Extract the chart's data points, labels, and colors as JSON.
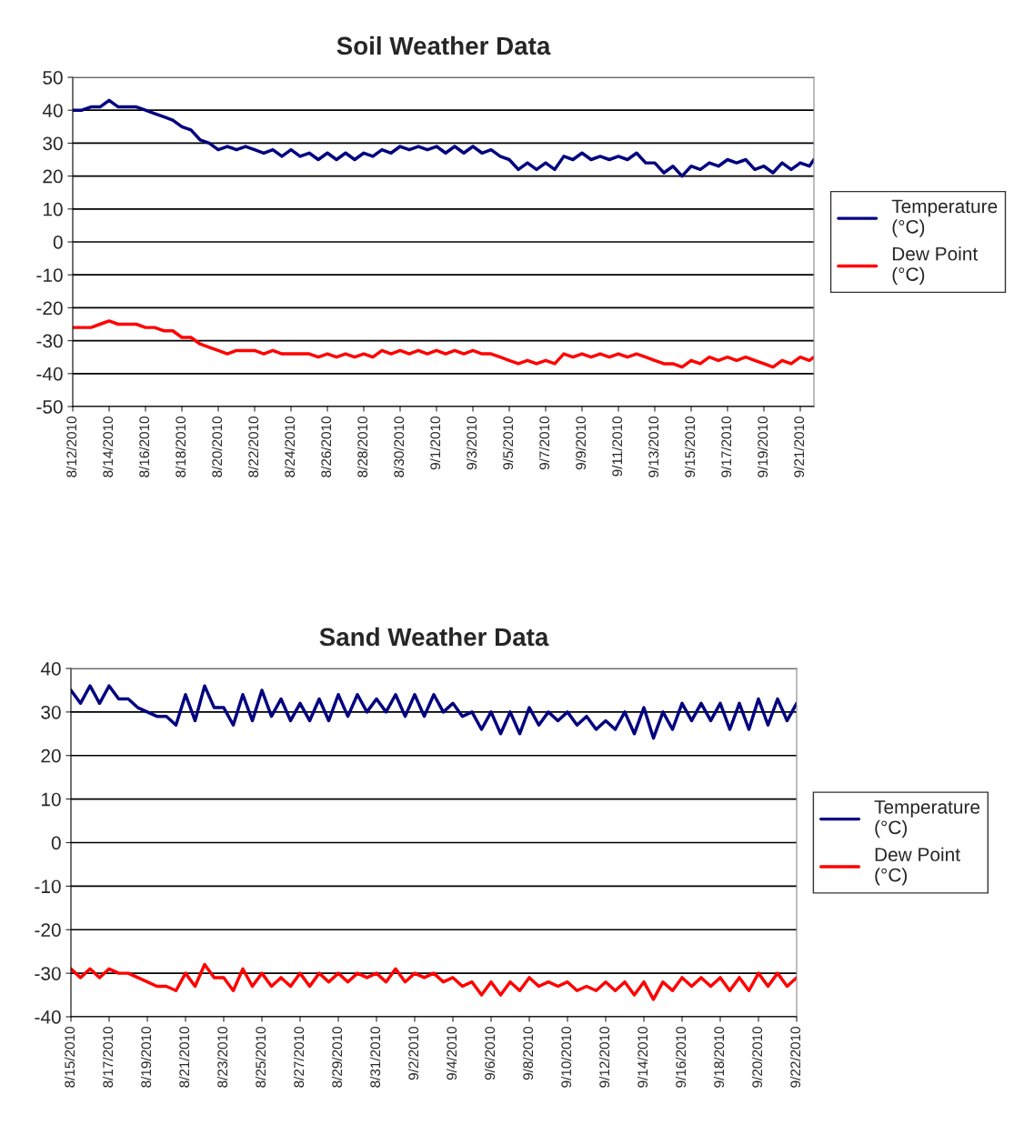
{
  "chart_data": [
    {
      "type": "line",
      "title": "Soil Weather Data",
      "grid": "y",
      "legend": "right",
      "marker": "none",
      "line_style": "solid",
      "x": [
        "2010-08-12",
        "2010-08-12T12:00",
        "2010-08-13",
        "2010-08-13T12:00",
        "2010-08-14",
        "2010-08-14T12:00",
        "2010-08-15",
        "2010-08-15T12:00",
        "2010-08-16",
        "2010-08-16T12:00",
        "2010-08-17",
        "2010-08-17T12:00",
        "2010-08-18",
        "2010-08-18T12:00",
        "2010-08-19",
        "2010-08-19T12:00",
        "2010-08-20",
        "2010-08-20T12:00",
        "2010-08-21",
        "2010-08-21T12:00",
        "2010-08-22",
        "2010-08-22T12:00",
        "2010-08-23",
        "2010-08-23T12:00",
        "2010-08-24",
        "2010-08-24T12:00",
        "2010-08-25",
        "2010-08-25T12:00",
        "2010-08-26",
        "2010-08-26T12:00",
        "2010-08-27",
        "2010-08-27T12:00",
        "2010-08-28",
        "2010-08-28T12:00",
        "2010-08-29",
        "2010-08-29T12:00",
        "2010-08-30",
        "2010-08-30T12:00",
        "2010-08-31",
        "2010-08-31T12:00",
        "2010-09-01",
        "2010-09-01T12:00",
        "2010-09-02",
        "2010-09-02T12:00",
        "2010-09-03",
        "2010-09-03T12:00",
        "2010-09-04",
        "2010-09-04T12:00",
        "2010-09-05",
        "2010-09-05T12:00",
        "2010-09-06",
        "2010-09-06T12:00",
        "2010-09-07",
        "2010-09-07T12:00",
        "2010-09-08",
        "2010-09-08T12:00",
        "2010-09-09",
        "2010-09-09T12:00",
        "2010-09-10",
        "2010-09-10T12:00",
        "2010-09-11",
        "2010-09-11T12:00",
        "2010-09-12",
        "2010-09-12T12:00",
        "2010-09-13",
        "2010-09-13T12:00",
        "2010-09-14",
        "2010-09-14T12:00",
        "2010-09-15",
        "2010-09-15T12:00",
        "2010-09-16",
        "2010-09-16T12:00",
        "2010-09-17",
        "2010-09-17T12:00",
        "2010-09-18",
        "2010-09-18T12:00",
        "2010-09-19",
        "2010-09-19T12:00",
        "2010-09-20",
        "2010-09-20T12:00",
        "2010-09-21",
        "2010-09-21T12:00",
        "2010-09-21T18:00"
      ],
      "series": [
        {
          "name": "Temperature (°C)",
          "color": "#000080",
          "values": [
            40,
            40,
            41,
            41,
            43,
            41,
            41,
            41,
            40,
            39,
            38,
            37,
            35,
            34,
            31,
            30,
            28,
            29,
            28,
            29,
            28,
            27,
            28,
            26,
            28,
            26,
            27,
            25,
            27,
            25,
            27,
            25,
            27,
            26,
            28,
            27,
            29,
            28,
            29,
            28,
            29,
            27,
            29,
            27,
            29,
            27,
            28,
            26,
            25,
            22,
            24,
            22,
            24,
            22,
            26,
            25,
            27,
            25,
            26,
            25,
            26,
            25,
            27,
            24,
            24,
            21,
            23,
            20,
            23,
            22,
            24,
            23,
            25,
            24,
            25,
            22,
            23,
            21,
            24,
            22,
            24,
            23,
            25
          ]
        },
        {
          "name": "Dew Point (°C)",
          "color": "#ff0000",
          "values": [
            -26,
            -26,
            -26,
            -25,
            -24,
            -25,
            -25,
            -25,
            -26,
            -26,
            -27,
            -27,
            -29,
            -29,
            -31,
            -32,
            -33,
            -34,
            -33,
            -33,
            -33,
            -34,
            -33,
            -34,
            -34,
            -34,
            -34,
            -35,
            -34,
            -35,
            -34,
            -35,
            -34,
            -35,
            -33,
            -34,
            -33,
            -34,
            -33,
            -34,
            -33,
            -34,
            -33,
            -34,
            -33,
            -34,
            -34,
            -35,
            -36,
            -37,
            -36,
            -37,
            -36,
            -37,
            -34,
            -35,
            -34,
            -35,
            -34,
            -35,
            -34,
            -35,
            -34,
            -35,
            -36,
            -37,
            -37,
            -38,
            -36,
            -37,
            -35,
            -36,
            -35,
            -36,
            -35,
            -36,
            -37,
            -38,
            -36,
            -37,
            -35,
            -36,
            -35
          ]
        }
      ],
      "xlim": [
        "2010-08-12",
        "2010-09-21T18:00"
      ],
      "xticks": [
        {
          "value": "2010-08-12",
          "label": "8/12/2010"
        },
        {
          "value": "2010-08-14",
          "label": "8/14/2010"
        },
        {
          "value": "2010-08-16",
          "label": "8/16/2010"
        },
        {
          "value": "2010-08-18",
          "label": "8/18/2010"
        },
        {
          "value": "2010-08-20",
          "label": "8/20/2010"
        },
        {
          "value": "2010-08-22",
          "label": "8/22/2010"
        },
        {
          "value": "2010-08-24",
          "label": "8/24/2010"
        },
        {
          "value": "2010-08-26",
          "label": "8/26/2010"
        },
        {
          "value": "2010-08-28",
          "label": "8/28/2010"
        },
        {
          "value": "2010-08-30",
          "label": "8/30/2010"
        },
        {
          "value": "2010-09-01",
          "label": "9/1/2010"
        },
        {
          "value": "2010-09-03",
          "label": "9/3/2010"
        },
        {
          "value": "2010-09-05",
          "label": "9/5/2010"
        },
        {
          "value": "2010-09-07",
          "label": "9/7/2010"
        },
        {
          "value": "2010-09-09",
          "label": "9/9/2010"
        },
        {
          "value": "2010-09-11",
          "label": "9/11/2010"
        },
        {
          "value": "2010-09-13",
          "label": "9/13/2010"
        },
        {
          "value": "2010-09-15",
          "label": "9/15/2010"
        },
        {
          "value": "2010-09-17",
          "label": "9/17/2010"
        },
        {
          "value": "2010-09-19",
          "label": "9/19/2010"
        },
        {
          "value": "2010-09-21",
          "label": "9/21/2010"
        }
      ],
      "ylim": [
        -50,
        50
      ],
      "yticks": [
        -50,
        -40,
        -30,
        -20,
        -10,
        0,
        10,
        20,
        30,
        40,
        50
      ]
    },
    {
      "type": "line",
      "title": "Sand Weather Data",
      "grid": "y",
      "legend": "right",
      "marker": "none",
      "line_style": "solid",
      "x": [
        "2010-08-15",
        "2010-08-15T12:00",
        "2010-08-16",
        "2010-08-16T12:00",
        "2010-08-17",
        "2010-08-17T12:00",
        "2010-08-18",
        "2010-08-18T12:00",
        "2010-08-19",
        "2010-08-19T12:00",
        "2010-08-20",
        "2010-08-20T12:00",
        "2010-08-21",
        "2010-08-21T12:00",
        "2010-08-22",
        "2010-08-22T12:00",
        "2010-08-23",
        "2010-08-23T12:00",
        "2010-08-24",
        "2010-08-24T12:00",
        "2010-08-25",
        "2010-08-25T12:00",
        "2010-08-26",
        "2010-08-26T12:00",
        "2010-08-27",
        "2010-08-27T12:00",
        "2010-08-28",
        "2010-08-28T12:00",
        "2010-08-29",
        "2010-08-29T12:00",
        "2010-08-30",
        "2010-08-30T12:00",
        "2010-08-31",
        "2010-08-31T12:00",
        "2010-09-01",
        "2010-09-01T12:00",
        "2010-09-02",
        "2010-09-02T12:00",
        "2010-09-03",
        "2010-09-03T12:00",
        "2010-09-04",
        "2010-09-04T12:00",
        "2010-09-05",
        "2010-09-05T12:00",
        "2010-09-06",
        "2010-09-06T12:00",
        "2010-09-07",
        "2010-09-07T12:00",
        "2010-09-08",
        "2010-09-08T12:00",
        "2010-09-09",
        "2010-09-09T12:00",
        "2010-09-10",
        "2010-09-10T12:00",
        "2010-09-11",
        "2010-09-11T12:00",
        "2010-09-12",
        "2010-09-12T12:00",
        "2010-09-13",
        "2010-09-13T12:00",
        "2010-09-14",
        "2010-09-14T12:00",
        "2010-09-15",
        "2010-09-15T12:00",
        "2010-09-16",
        "2010-09-16T12:00",
        "2010-09-17",
        "2010-09-17T12:00",
        "2010-09-18",
        "2010-09-18T12:00",
        "2010-09-19",
        "2010-09-19T12:00",
        "2010-09-20",
        "2010-09-20T12:00",
        "2010-09-21",
        "2010-09-21T12:00",
        "2010-09-22"
      ],
      "series": [
        {
          "name": "Temperature (°C)",
          "color": "#000080",
          "values": [
            35,
            32,
            36,
            32,
            36,
            33,
            33,
            31,
            30,
            29,
            29,
            27,
            34,
            28,
            36,
            31,
            31,
            27,
            34,
            28,
            35,
            29,
            33,
            28,
            32,
            28,
            33,
            28,
            34,
            29,
            34,
            30,
            33,
            30,
            34,
            29,
            34,
            29,
            34,
            30,
            32,
            29,
            30,
            26,
            30,
            25,
            30,
            25,
            31,
            27,
            30,
            28,
            30,
            27,
            29,
            26,
            28,
            26,
            30,
            25,
            31,
            24,
            30,
            26,
            32,
            28,
            32,
            28,
            32,
            26,
            32,
            26,
            33,
            27,
            33,
            28,
            32
          ]
        },
        {
          "name": "Dew Point (°C)",
          "color": "#ff0000",
          "values": [
            -29,
            -31,
            -29,
            -31,
            -29,
            -30,
            -30,
            -31,
            -32,
            -33,
            -33,
            -34,
            -30,
            -33,
            -28,
            -31,
            -31,
            -34,
            -29,
            -33,
            -30,
            -33,
            -31,
            -33,
            -30,
            -33,
            -30,
            -32,
            -30,
            -32,
            -30,
            -31,
            -30,
            -32,
            -29,
            -32,
            -30,
            -31,
            -30,
            -32,
            -31,
            -33,
            -32,
            -35,
            -32,
            -35,
            -32,
            -34,
            -31,
            -33,
            -32,
            -33,
            -32,
            -34,
            -33,
            -34,
            -32,
            -34,
            -32,
            -35,
            -32,
            -36,
            -32,
            -34,
            -31,
            -33,
            -31,
            -33,
            -31,
            -34,
            -31,
            -34,
            -30,
            -33,
            -30,
            -33,
            -31
          ]
        }
      ],
      "xlim": [
        "2010-08-15",
        "2010-09-22"
      ],
      "xticks": [
        {
          "value": "2010-08-15",
          "label": "8/15/2010"
        },
        {
          "value": "2010-08-17",
          "label": "8/17/2010"
        },
        {
          "value": "2010-08-19",
          "label": "8/19/2010"
        },
        {
          "value": "2010-08-21",
          "label": "8/21/2010"
        },
        {
          "value": "2010-08-23",
          "label": "8/23/2010"
        },
        {
          "value": "2010-08-25",
          "label": "8/25/2010"
        },
        {
          "value": "2010-08-27",
          "label": "8/27/2010"
        },
        {
          "value": "2010-08-29",
          "label": "8/29/2010"
        },
        {
          "value": "2010-08-31",
          "label": "8/31/2010"
        },
        {
          "value": "2010-09-02",
          "label": "9/2/2010"
        },
        {
          "value": "2010-09-04",
          "label": "9/4/2010"
        },
        {
          "value": "2010-09-06",
          "label": "9/6/2010"
        },
        {
          "value": "2010-09-08",
          "label": "9/8/2010"
        },
        {
          "value": "2010-09-10",
          "label": "9/10/2010"
        },
        {
          "value": "2010-09-12",
          "label": "9/12/2010"
        },
        {
          "value": "2010-09-14",
          "label": "9/14/2010"
        },
        {
          "value": "2010-09-16",
          "label": "9/16/2010"
        },
        {
          "value": "2010-09-18",
          "label": "9/18/2010"
        },
        {
          "value": "2010-09-20",
          "label": "9/20/2010"
        },
        {
          "value": "2010-09-22",
          "label": "9/22/2010"
        }
      ],
      "ylim": [
        -40,
        40
      ],
      "yticks": [
        -40,
        -30,
        -20,
        -10,
        0,
        10,
        20,
        30,
        40
      ]
    }
  ]
}
